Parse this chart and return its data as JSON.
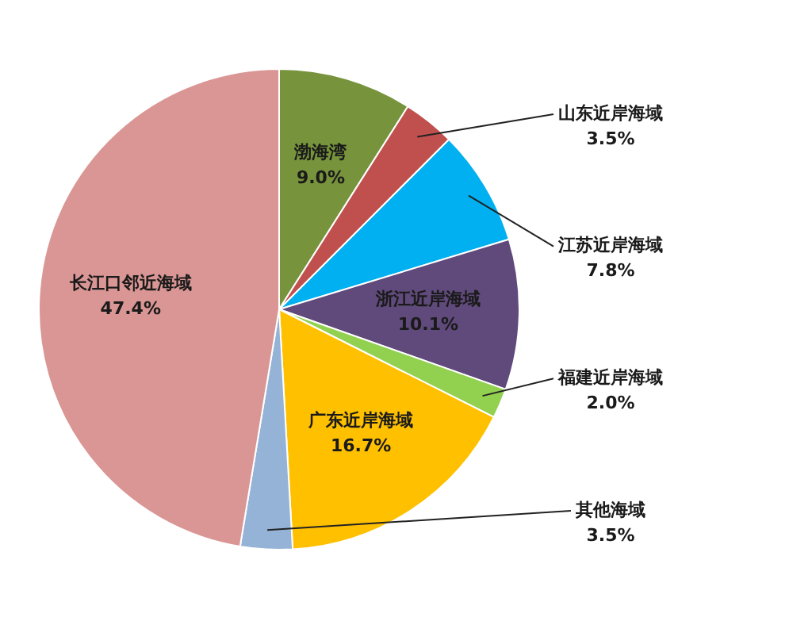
{
  "chart_data": {
    "type": "pie",
    "categories": [
      "渤海湾",
      "山东近岸海域",
      "江苏近岸海域",
      "浙江近岸海域",
      "福建近岸海域",
      "广东近岸海域",
      "其他海域",
      "长江口邻近海域"
    ],
    "values": [
      9.0,
      3.5,
      7.8,
      10.1,
      2.0,
      16.7,
      3.5,
      47.4
    ],
    "colors": [
      "#77933c",
      "#c0504d",
      "#00b0f0",
      "#604a7b",
      "#92d050",
      "#ffc000",
      "#95b3d7",
      "#d99694"
    ],
    "value_labels": [
      "9.0%",
      "3.5%",
      "7.8%",
      "10.1%",
      "2.0%",
      "16.7%",
      "3.5%",
      "47.4%"
    ],
    "legend": false
  }
}
